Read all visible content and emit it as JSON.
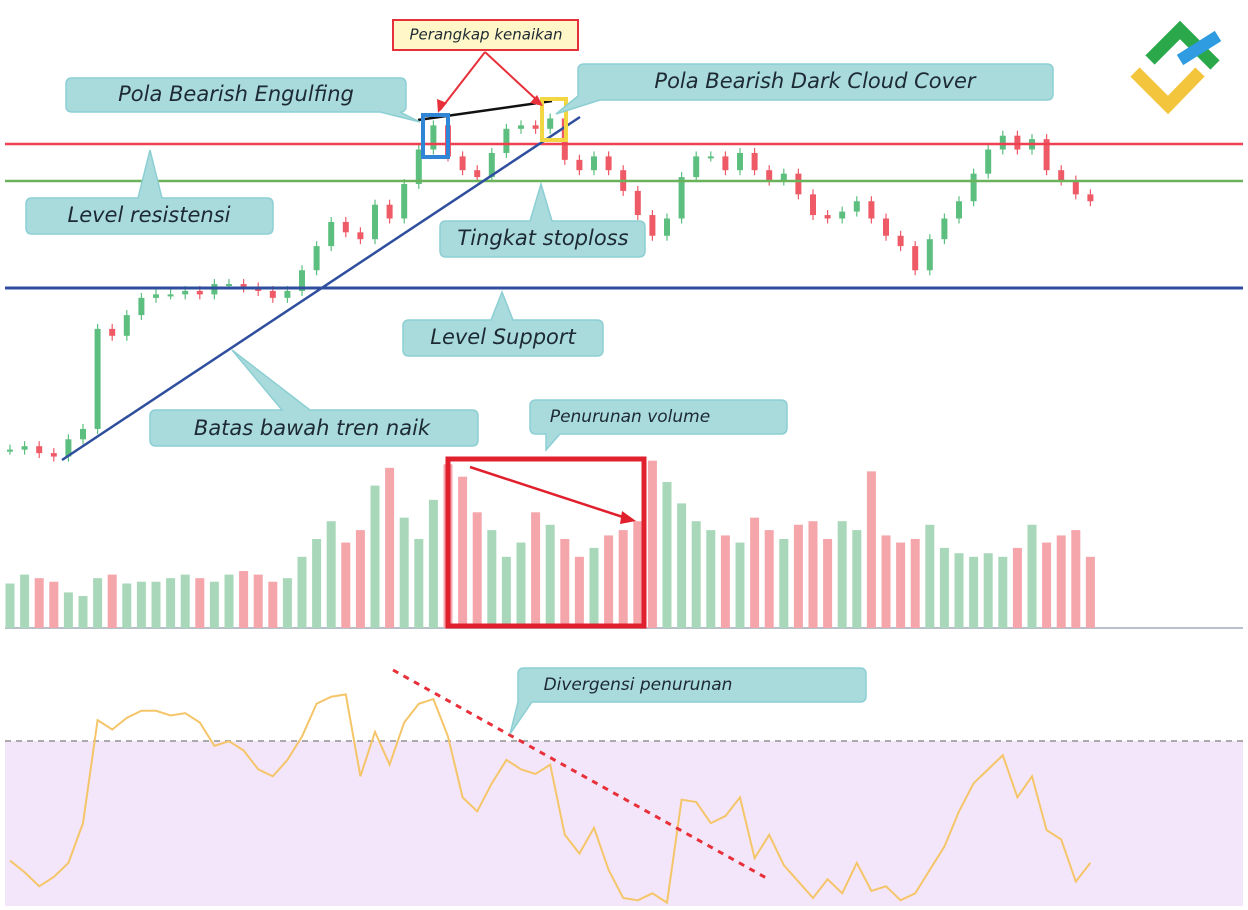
{
  "annotations": {
    "trap": "Perangkap kenaikan",
    "engulfing": "Pola Bearish Engulfing",
    "dark_cloud": "Pola Bearish Dark Cloud Cover",
    "resistance": "Level resistensi",
    "stoploss": "Tingkat stoploss",
    "support": "Level Support",
    "trendline": "Batas bawah tren naik",
    "volume_drop": "Penurunan volume",
    "divergence": "Divergensi penurunan"
  },
  "price": {
    "up_color": "#5cbf7f",
    "down_color": "#ee5a66",
    "ylim": [
      0,
      100
    ],
    "closes": [
      3,
      4,
      2,
      1,
      6,
      9,
      38,
      36,
      42,
      47,
      48,
      48,
      49,
      48,
      51,
      51,
      50,
      49,
      47,
      49,
      55,
      62,
      69,
      66,
      64,
      74,
      70,
      80,
      90,
      97,
      88,
      84,
      82,
      89,
      96,
      97,
      96,
      99,
      87,
      84,
      88,
      84,
      78,
      71,
      65,
      70,
      82,
      88,
      88,
      84,
      89,
      84,
      81,
      83,
      77,
      71,
      70,
      72,
      75,
      70,
      65,
      62,
      55,
      64,
      70,
      75,
      83,
      90,
      94,
      90,
      93,
      84,
      81,
      77,
      75
    ]
  },
  "volume": {
    "up_color": "#a8d8b9",
    "down_color": "#f4a6ab",
    "ylim": [
      0,
      100
    ],
    "values": [
      25,
      30,
      28,
      26,
      20,
      18,
      28,
      30,
      25,
      26,
      26,
      28,
      30,
      28,
      26,
      30,
      32,
      30,
      26,
      28,
      40,
      50,
      60,
      48,
      55,
      80,
      90,
      62,
      50,
      72,
      92,
      85,
      65,
      55,
      40,
      48,
      65,
      58,
      50,
      40,
      45,
      52,
      55,
      60,
      94,
      82,
      70,
      60,
      55,
      52,
      48,
      62,
      55,
      50,
      58,
      60,
      50,
      60,
      55,
      88,
      52,
      48,
      50,
      58,
      45,
      42,
      40,
      42,
      40,
      45,
      58,
      48,
      52,
      55,
      40
    ]
  },
  "rsi": {
    "color": "#f5c56a",
    "ylim": [
      0,
      100
    ],
    "values": [
      19,
      14,
      8,
      12,
      18,
      35,
      79,
      75,
      80,
      83,
      83,
      81,
      82,
      78,
      68,
      70,
      66,
      58,
      55,
      62,
      72,
      86,
      89,
      90,
      55,
      74,
      60,
      78,
      86,
      88,
      72,
      46,
      40,
      52,
      62,
      58,
      56,
      60,
      30,
      22,
      33,
      15,
      3,
      2,
      5,
      1,
      45,
      44,
      35,
      38,
      46,
      20,
      30,
      17,
      10,
      3,
      11,
      5,
      18,
      6,
      8,
      2,
      5,
      15,
      25,
      40,
      52,
      58,
      64,
      46,
      55,
      32,
      28,
      10,
      18
    ]
  }
}
